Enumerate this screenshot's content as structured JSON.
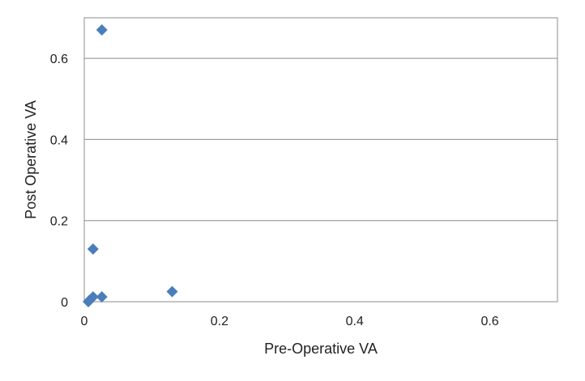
{
  "chart_data": {
    "type": "scatter",
    "title": "",
    "xlabel": "Pre-Operative VA",
    "ylabel": "Post Operative VA",
    "xlim": [
      0,
      0.7
    ],
    "ylim": [
      0,
      0.7
    ],
    "x_ticks": [
      {
        "value": 0,
        "label": "0"
      },
      {
        "value": 0.2,
        "label": "0.2"
      },
      {
        "value": 0.4,
        "label": "0.4"
      },
      {
        "value": 0.6,
        "label": "0.6"
      }
    ],
    "y_ticks": [
      {
        "value": 0,
        "label": "0"
      },
      {
        "value": 0.2,
        "label": "0.2"
      },
      {
        "value": 0.4,
        "label": "0.4"
      },
      {
        "value": 0.6,
        "label": "0.6"
      }
    ],
    "grid": {
      "horizontal": true,
      "vertical": false
    },
    "legend": "none",
    "marker": "diamond",
    "marker_color": "#4a7ebb",
    "series": [
      {
        "points": [
          {
            "x": 0.026,
            "y": 0.67
          },
          {
            "x": 0.013,
            "y": 0.13
          },
          {
            "x": 0.13,
            "y": 0.025
          },
          {
            "x": 0.026,
            "y": 0.012
          },
          {
            "x": 0.013,
            "y": 0.012
          },
          {
            "x": 0.008,
            "y": 0.004
          },
          {
            "x": 0.006,
            "y": 0.0
          }
        ]
      }
    ]
  }
}
